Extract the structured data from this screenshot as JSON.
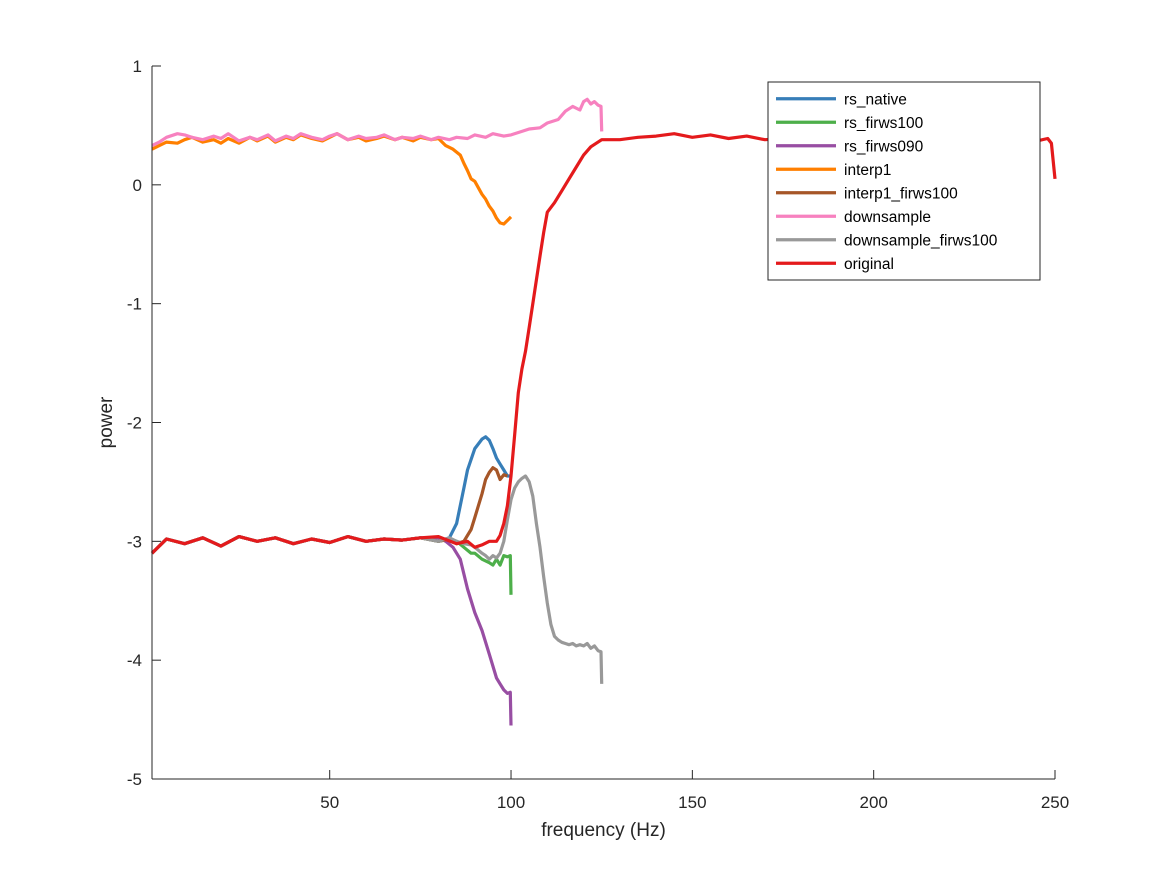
{
  "chart_data": {
    "type": "line",
    "title": "",
    "xlabel": "frequency (Hz)",
    "ylabel": "power",
    "xlim": [
      1,
      250
    ],
    "ylim": [
      -5,
      1
    ],
    "xticks": [
      {
        "value": 50,
        "label": "50"
      },
      {
        "value": 100,
        "label": "100"
      },
      {
        "value": 150,
        "label": "150"
      },
      {
        "value": 200,
        "label": "200"
      },
      {
        "value": 250,
        "label": "250"
      }
    ],
    "yticks": [
      {
        "value": 1,
        "label": "1"
      },
      {
        "value": 0,
        "label": "0"
      },
      {
        "value": -1,
        "label": "-1"
      },
      {
        "value": -2,
        "label": "-2"
      },
      {
        "value": -3,
        "label": "-3"
      },
      {
        "value": -4,
        "label": "-4"
      },
      {
        "value": -5,
        "label": "-5"
      }
    ],
    "grid": false,
    "legend_position": "top-right",
    "series": [
      {
        "name": "rs_native",
        "color": "#377eb8",
        "x": [
          1,
          5,
          10,
          15,
          20,
          25,
          30,
          35,
          40,
          45,
          50,
          55,
          60,
          65,
          70,
          75,
          80,
          83,
          85,
          87,
          88,
          90,
          92,
          93,
          94,
          95,
          96,
          97,
          98,
          99,
          100
        ],
        "y": [
          -3.1,
          -2.98,
          -3.02,
          -2.97,
          -3.04,
          -2.96,
          -3.0,
          -2.97,
          -3.02,
          -2.98,
          -3.01,
          -2.96,
          -3.0,
          -2.98,
          -2.99,
          -2.97,
          -3.0,
          -2.97,
          -2.85,
          -2.55,
          -2.4,
          -2.22,
          -2.14,
          -2.12,
          -2.15,
          -2.22,
          -2.3,
          -2.35,
          -2.4,
          -2.45,
          -2.45
        ]
      },
      {
        "name": "rs_firws100",
        "color": "#4daf4a",
        "x": [
          1,
          5,
          10,
          15,
          20,
          25,
          30,
          35,
          40,
          45,
          50,
          55,
          60,
          65,
          70,
          75,
          80,
          83,
          85,
          87,
          89,
          90,
          92,
          94,
          95,
          96,
          97,
          98,
          99,
          99.8,
          100
        ],
        "y": [
          -3.1,
          -2.98,
          -3.02,
          -2.97,
          -3.04,
          -2.96,
          -3.0,
          -2.97,
          -3.02,
          -2.98,
          -3.01,
          -2.96,
          -3.0,
          -2.98,
          -2.99,
          -2.97,
          -3.0,
          -2.98,
          -3.0,
          -3.05,
          -3.1,
          -3.1,
          -3.15,
          -3.18,
          -3.2,
          -3.15,
          -3.2,
          -3.12,
          -3.13,
          -3.12,
          -3.45
        ]
      },
      {
        "name": "rs_firws090",
        "color": "#984ea3",
        "x": [
          1,
          5,
          10,
          15,
          20,
          25,
          30,
          35,
          40,
          45,
          50,
          55,
          60,
          65,
          70,
          75,
          80,
          82,
          84,
          86,
          88,
          90,
          92,
          94,
          96,
          97,
          98,
          99,
          99.8,
          100
        ],
        "y": [
          -3.1,
          -2.98,
          -3.02,
          -2.97,
          -3.04,
          -2.96,
          -3.0,
          -2.97,
          -3.02,
          -2.98,
          -3.01,
          -2.96,
          -3.0,
          -2.98,
          -2.99,
          -2.97,
          -2.97,
          -3.0,
          -3.05,
          -3.15,
          -3.4,
          -3.6,
          -3.75,
          -3.95,
          -4.15,
          -4.2,
          -4.25,
          -4.28,
          -4.27,
          -4.55
        ]
      },
      {
        "name": "interp1",
        "color": "#ff7f00",
        "x": [
          1,
          3,
          5,
          8,
          10,
          12,
          15,
          18,
          20,
          22,
          25,
          28,
          30,
          33,
          35,
          38,
          40,
          42,
          45,
          48,
          50,
          52,
          55,
          58,
          60,
          63,
          65,
          68,
          70,
          73,
          75,
          78,
          80,
          82,
          84,
          86,
          87,
          88,
          89,
          90,
          92,
          93,
          94,
          95,
          96,
          97,
          98,
          99,
          100
        ],
        "y": [
          0.3,
          0.33,
          0.36,
          0.35,
          0.38,
          0.4,
          0.36,
          0.38,
          0.35,
          0.39,
          0.35,
          0.4,
          0.37,
          0.41,
          0.36,
          0.4,
          0.38,
          0.42,
          0.39,
          0.37,
          0.4,
          0.43,
          0.38,
          0.4,
          0.37,
          0.39,
          0.41,
          0.38,
          0.4,
          0.37,
          0.4,
          0.38,
          0.39,
          0.33,
          0.3,
          0.25,
          0.18,
          0.12,
          0.05,
          0.03,
          -0.08,
          -0.12,
          -0.18,
          -0.22,
          -0.28,
          -0.32,
          -0.33,
          -0.3,
          -0.27
        ]
      },
      {
        "name": "interp1_firws100",
        "color": "#a65628",
        "x": [
          1,
          5,
          10,
          15,
          20,
          25,
          30,
          35,
          40,
          45,
          50,
          55,
          60,
          65,
          70,
          75,
          80,
          83,
          85,
          87,
          89,
          90,
          91,
          92,
          93,
          94,
          95,
          96,
          97,
          98,
          99
        ],
        "y": [
          -3.1,
          -2.98,
          -3.02,
          -2.97,
          -3.04,
          -2.96,
          -3.0,
          -2.97,
          -3.02,
          -2.98,
          -3.01,
          -2.96,
          -3.0,
          -2.98,
          -2.99,
          -2.97,
          -3.0,
          -2.98,
          -3.02,
          -3.0,
          -2.9,
          -2.8,
          -2.7,
          -2.6,
          -2.48,
          -2.42,
          -2.38,
          -2.4,
          -2.48,
          -2.44,
          -2.45
        ]
      },
      {
        "name": "downsample",
        "color": "#f781bf",
        "x": [
          1,
          3,
          5,
          8,
          10,
          12,
          15,
          18,
          20,
          22,
          25,
          28,
          30,
          33,
          35,
          38,
          40,
          42,
          45,
          48,
          50,
          52,
          55,
          58,
          60,
          63,
          65,
          68,
          70,
          73,
          75,
          78,
          80,
          83,
          85,
          88,
          90,
          93,
          95,
          98,
          100,
          103,
          105,
          108,
          110,
          113,
          115,
          117,
          119,
          120,
          121,
          122,
          123,
          124,
          124.8,
          125
        ],
        "y": [
          0.33,
          0.36,
          0.4,
          0.43,
          0.42,
          0.4,
          0.38,
          0.41,
          0.39,
          0.43,
          0.37,
          0.4,
          0.38,
          0.42,
          0.37,
          0.41,
          0.39,
          0.43,
          0.4,
          0.38,
          0.41,
          0.43,
          0.38,
          0.41,
          0.39,
          0.4,
          0.42,
          0.38,
          0.4,
          0.39,
          0.41,
          0.38,
          0.4,
          0.38,
          0.4,
          0.39,
          0.42,
          0.4,
          0.43,
          0.41,
          0.42,
          0.45,
          0.47,
          0.48,
          0.52,
          0.55,
          0.62,
          0.66,
          0.63,
          0.7,
          0.72,
          0.68,
          0.7,
          0.67,
          0.66,
          0.45
        ]
      },
      {
        "name": "downsample_firws100",
        "color": "#999999",
        "x": [
          1,
          5,
          10,
          15,
          20,
          25,
          30,
          35,
          40,
          45,
          50,
          55,
          60,
          65,
          70,
          75,
          80,
          83,
          85,
          87,
          89,
          90,
          92,
          93,
          94,
          95,
          96,
          97,
          98,
          99,
          100,
          101,
          102,
          103,
          104,
          105,
          106,
          107,
          108,
          109,
          110,
          111,
          112,
          113,
          114,
          115,
          116,
          117,
          118,
          119,
          120,
          121,
          122,
          123,
          124,
          124.8,
          125
        ],
        "y": [
          -3.1,
          -2.98,
          -3.02,
          -2.97,
          -3.04,
          -2.96,
          -3.0,
          -2.97,
          -3.02,
          -2.98,
          -3.01,
          -2.96,
          -3.0,
          -2.98,
          -2.99,
          -2.97,
          -3.0,
          -2.97,
          -3.0,
          -3.02,
          -3.03,
          -3.05,
          -3.1,
          -3.12,
          -3.15,
          -3.12,
          -3.14,
          -3.1,
          -3.0,
          -2.82,
          -2.65,
          -2.55,
          -2.5,
          -2.47,
          -2.45,
          -2.5,
          -2.62,
          -2.85,
          -3.05,
          -3.3,
          -3.52,
          -3.7,
          -3.8,
          -3.83,
          -3.85,
          -3.86,
          -3.87,
          -3.86,
          -3.88,
          -3.87,
          -3.88,
          -3.86,
          -3.9,
          -3.88,
          -3.92,
          -3.93,
          -4.2
        ]
      },
      {
        "name": "original",
        "color": "#e41a1c",
        "x": [
          1,
          5,
          10,
          15,
          20,
          25,
          30,
          35,
          40,
          45,
          50,
          55,
          60,
          65,
          70,
          75,
          80,
          85,
          88,
          90,
          92,
          94,
          96,
          97,
          98,
          99,
          100,
          101,
          102,
          103,
          104,
          105,
          106,
          107,
          108,
          109,
          110,
          112,
          114,
          116,
          118,
          120,
          122,
          125,
          130,
          135,
          140,
          145,
          150,
          155,
          160,
          165,
          170,
          180,
          190,
          200,
          210,
          220,
          230,
          240,
          245,
          248,
          249,
          250
        ],
        "y": [
          -3.1,
          -2.98,
          -3.02,
          -2.97,
          -3.04,
          -2.96,
          -3.0,
          -2.97,
          -3.02,
          -2.98,
          -3.01,
          -2.96,
          -3.0,
          -2.98,
          -2.99,
          -2.97,
          -2.96,
          -3.02,
          -3.0,
          -3.05,
          -3.03,
          -3.0,
          -3.0,
          -2.95,
          -2.85,
          -2.7,
          -2.45,
          -2.1,
          -1.75,
          -1.55,
          -1.4,
          -1.2,
          -1.0,
          -0.8,
          -0.6,
          -0.4,
          -0.23,
          -0.15,
          -0.05,
          0.05,
          0.15,
          0.25,
          0.32,
          0.38,
          0.38,
          0.4,
          0.41,
          0.43,
          0.4,
          0.42,
          0.39,
          0.41,
          0.38,
          0.4,
          0.42,
          0.38,
          0.41,
          0.39,
          0.4,
          0.38,
          0.37,
          0.39,
          0.35,
          0.05
        ]
      }
    ]
  }
}
